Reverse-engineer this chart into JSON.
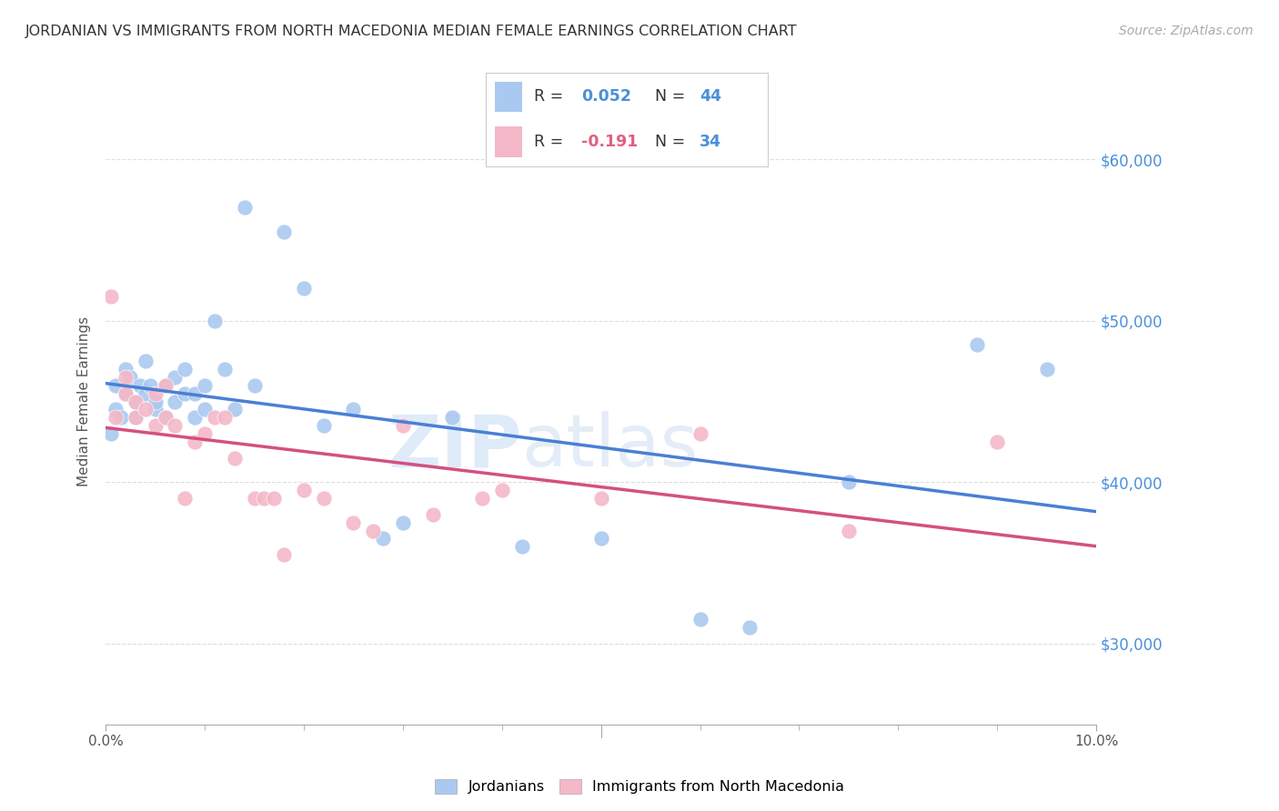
{
  "title": "JORDANIAN VS IMMIGRANTS FROM NORTH MACEDONIA MEDIAN FEMALE EARNINGS CORRELATION CHART",
  "source": "Source: ZipAtlas.com",
  "ylabel": "Median Female Earnings",
  "ytick_labels": [
    "$30,000",
    "$40,000",
    "$50,000",
    "$60,000"
  ],
  "ytick_values": [
    30000,
    40000,
    50000,
    60000
  ],
  "legend_label1": "Jordanians",
  "legend_label2": "Immigrants from North Macedonia",
  "R1": 0.052,
  "N1": 44,
  "R2": -0.191,
  "N2": 34,
  "color_blue": "#aac9f0",
  "color_pink": "#f4b8c8",
  "color_blue_text": "#4a90d9",
  "color_pink_text": "#e06080",
  "color_line_blue": "#4a7fd4",
  "color_line_pink": "#d45080",
  "background_color": "#ffffff",
  "watermark_part1": "ZIP",
  "watermark_part2": "atlas",
  "xlim": [
    0.0,
    0.1
  ],
  "ylim": [
    25000,
    65000
  ],
  "blue_x": [
    0.0005,
    0.001,
    0.001,
    0.0015,
    0.002,
    0.002,
    0.0025,
    0.003,
    0.003,
    0.0035,
    0.004,
    0.004,
    0.0045,
    0.005,
    0.005,
    0.006,
    0.006,
    0.007,
    0.007,
    0.008,
    0.008,
    0.009,
    0.009,
    0.01,
    0.01,
    0.011,
    0.012,
    0.013,
    0.014,
    0.015,
    0.018,
    0.02,
    0.022,
    0.025,
    0.028,
    0.03,
    0.035,
    0.042,
    0.05,
    0.06,
    0.065,
    0.075,
    0.088,
    0.095
  ],
  "blue_y": [
    43000,
    44500,
    46000,
    44000,
    45500,
    47000,
    46500,
    45000,
    44000,
    46000,
    45500,
    47500,
    46000,
    44500,
    45000,
    46000,
    44000,
    46500,
    45000,
    45500,
    47000,
    44000,
    45500,
    44500,
    46000,
    50000,
    47000,
    44500,
    57000,
    46000,
    55500,
    52000,
    43500,
    44500,
    36500,
    37500,
    44000,
    36000,
    36500,
    31500,
    31000,
    40000,
    48500,
    47000
  ],
  "pink_x": [
    0.0005,
    0.001,
    0.002,
    0.002,
    0.003,
    0.003,
    0.004,
    0.005,
    0.005,
    0.006,
    0.006,
    0.007,
    0.008,
    0.009,
    0.01,
    0.011,
    0.012,
    0.013,
    0.015,
    0.016,
    0.017,
    0.018,
    0.02,
    0.022,
    0.025,
    0.027,
    0.03,
    0.033,
    0.038,
    0.04,
    0.05,
    0.06,
    0.075,
    0.09
  ],
  "pink_y": [
    51500,
    44000,
    45500,
    46500,
    44000,
    45000,
    44500,
    45500,
    43500,
    46000,
    44000,
    43500,
    39000,
    42500,
    43000,
    44000,
    44000,
    41500,
    39000,
    39000,
    39000,
    35500,
    39500,
    39000,
    37500,
    37000,
    43500,
    38000,
    39000,
    39500,
    39000,
    43000,
    37000,
    42500
  ]
}
